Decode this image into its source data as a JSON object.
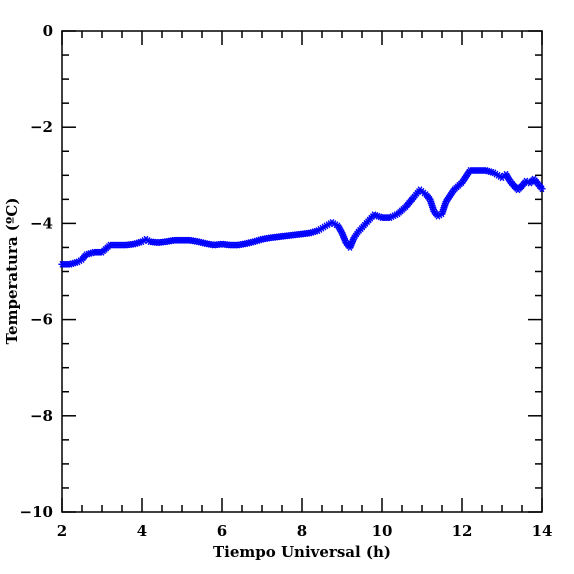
{
  "chart_data": {
    "type": "scatter",
    "title": "",
    "xlabel": "Tiempo Universal (h)",
    "ylabel": "Temperatura (ºC)",
    "xlim": [
      2,
      14
    ],
    "ylim": [
      -10,
      0
    ],
    "x_ticks": [
      2,
      4,
      6,
      8,
      10,
      12,
      14
    ],
    "y_ticks": [
      0,
      -2,
      -4,
      -6,
      -8,
      -10
    ],
    "x_tick_labels": [
      "2",
      "4",
      "6",
      "8",
      "10",
      "12",
      "14"
    ],
    "y_tick_labels": [
      "0",
      "−2",
      "−4",
      "−6",
      "−8",
      "−10"
    ],
    "grid": false,
    "marker": "asterisk",
    "series": [
      {
        "color": "#0000ff",
        "x": [
          2.0,
          2.2,
          2.4,
          2.5,
          2.6,
          2.8,
          3.0,
          3.2,
          3.4,
          3.6,
          3.8,
          4.0,
          4.1,
          4.2,
          4.4,
          4.6,
          4.8,
          5.0,
          5.2,
          5.4,
          5.6,
          5.8,
          6.0,
          6.2,
          6.4,
          6.6,
          6.8,
          7.0,
          7.2,
          7.4,
          7.6,
          7.8,
          8.0,
          8.2,
          8.4,
          8.6,
          8.75,
          8.9,
          9.0,
          9.1,
          9.2,
          9.3,
          9.4,
          9.6,
          9.8,
          10.0,
          10.2,
          10.4,
          10.6,
          10.8,
          10.95,
          11.1,
          11.2,
          11.3,
          11.4,
          11.5,
          11.6,
          11.8,
          12.0,
          12.2,
          12.4,
          12.6,
          12.8,
          13.0,
          13.1,
          13.2,
          13.3,
          13.4,
          13.5,
          13.6,
          13.7,
          13.8,
          13.9,
          14.0
        ],
        "y": [
          -4.85,
          -4.85,
          -4.8,
          -4.75,
          -4.65,
          -4.6,
          -4.6,
          -4.45,
          -4.45,
          -4.45,
          -4.43,
          -4.38,
          -4.33,
          -4.38,
          -4.4,
          -4.38,
          -4.35,
          -4.35,
          -4.35,
          -4.38,
          -4.42,
          -4.45,
          -4.43,
          -4.45,
          -4.45,
          -4.42,
          -4.38,
          -4.33,
          -4.3,
          -4.28,
          -4.26,
          -4.24,
          -4.22,
          -4.2,
          -4.15,
          -4.05,
          -3.98,
          -4.05,
          -4.2,
          -4.4,
          -4.5,
          -4.3,
          -4.18,
          -4.0,
          -3.82,
          -3.88,
          -3.88,
          -3.8,
          -3.65,
          -3.45,
          -3.3,
          -3.4,
          -3.5,
          -3.75,
          -3.85,
          -3.8,
          -3.55,
          -3.3,
          -3.15,
          -2.9,
          -2.9,
          -2.9,
          -2.95,
          -3.05,
          -2.98,
          -3.12,
          -3.22,
          -3.3,
          -3.22,
          -3.12,
          -3.16,
          -3.08,
          -3.18,
          -3.28
        ]
      }
    ]
  }
}
